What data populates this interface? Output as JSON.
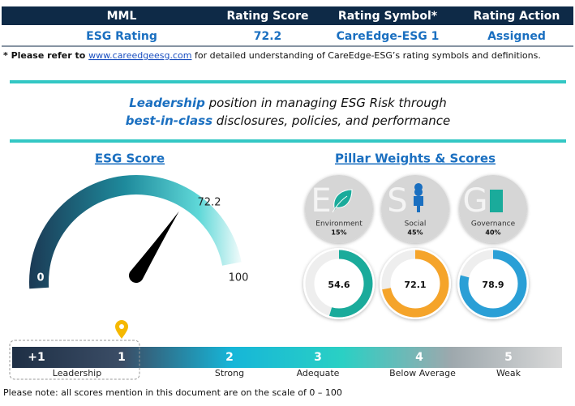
{
  "table": {
    "header": [
      "MML",
      "Rating Score",
      "Rating Symbol*",
      "Rating Action"
    ],
    "rows": [
      [
        "ESG Rating",
        "72.2",
        "CareEdge-ESG 1",
        "Assigned"
      ]
    ]
  },
  "footnote": {
    "prefix": "* Please refer to ",
    "link": "www.careedgeesg.com",
    "suffix": " for detailed understanding of CareEdge-ESG’s rating symbols and definitions."
  },
  "tagline": {
    "line1": {
      "em": "Leadership",
      "rest": " position in managing ESG Risk through"
    },
    "line2": {
      "em": "best-in-class",
      "rest": " disclosures, policies, and performance"
    }
  },
  "esg_score": {
    "title": "ESG Score",
    "value": 72.2,
    "min": 0,
    "max": 100
  },
  "pillars": {
    "title": "Pillar Weights & Scores",
    "items": [
      {
        "letter": "E",
        "name": "Environment",
        "weight": "15%",
        "score": 54.6,
        "color": "#1aab9b"
      },
      {
        "letter": "S",
        "name": "Social",
        "weight": "45%",
        "score": 72.1,
        "color": "#f5a42a"
      },
      {
        "letter": "G",
        "name": "Governance",
        "weight": "40%",
        "score": 78.9,
        "color": "#2a9fd6"
      }
    ]
  },
  "scale": {
    "levels": [
      "+1",
      "1",
      "2",
      "3",
      "4",
      "5"
    ],
    "names": [
      "Leadership",
      "Strong",
      "Adequate",
      "Below Average",
      "Weak"
    ]
  },
  "note": "Please note: all scores mention in this document are on the scale of 0 – 100"
}
